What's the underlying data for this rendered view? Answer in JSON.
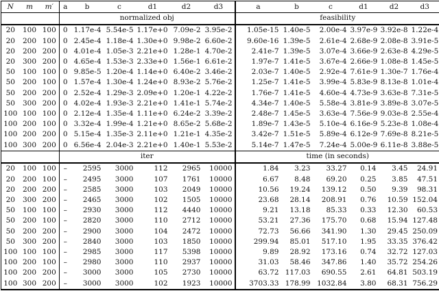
{
  "table": {
    "id_headers": [
      "N",
      "m",
      "m′"
    ],
    "metric_headers": [
      "a",
      "b",
      "c",
      "d1",
      "d2",
      "d3"
    ],
    "sections": [
      {
        "left_label": "normalized obj",
        "right_label": "feasibility"
      },
      {
        "left_label": "iter",
        "right_label": "time (in seconds)"
      }
    ],
    "rows": [
      {
        "id": [
          "20",
          "100",
          "100"
        ],
        "normalized_obj": [
          "0",
          "1.17e-4",
          "5.54e-5",
          "1.17e+0",
          "7.09e-2",
          "3.95e-2"
        ],
        "feasibility": [
          "1.05e-15",
          "1.40e-5",
          "2.00e-4",
          "3.97e-9",
          "3.92e-8",
          "1.22e-4"
        ],
        "iter": [
          "–",
          "2595",
          "3000",
          "112",
          "2965",
          "10000"
        ],
        "time": [
          "1.84",
          "3.23",
          "33.27",
          "0.14",
          "3.45",
          "24.91"
        ]
      },
      {
        "id": [
          "20",
          "200",
          "100"
        ],
        "normalized_obj": [
          "0",
          "2.45e-4",
          "1.18e-4",
          "1.30e+0",
          "9.98e-2",
          "6.60e-2"
        ],
        "feasibility": [
          "9.60e-16",
          "1.39e-5",
          "2.61e-4",
          "2.68e-9",
          "2.08e-8",
          "3.91e-5"
        ],
        "iter": [
          "–",
          "2495",
          "3000",
          "107",
          "1761",
          "10000"
        ],
        "time": [
          "6.67",
          "8.48",
          "69.20",
          "0.25",
          "3.85",
          "47.51"
        ]
      },
      {
        "id": [
          "20",
          "200",
          "200"
        ],
        "normalized_obj": [
          "0",
          "4.01e-4",
          "1.05e-3",
          "2.21e+0",
          "1.28e-1",
          "4.70e-2"
        ],
        "feasibility": [
          "2.41e-7",
          "1.39e-5",
          "3.07e-4",
          "3.66e-9",
          "2.63e-8",
          "4.29e-5"
        ],
        "iter": [
          "–",
          "2585",
          "3000",
          "103",
          "2049",
          "10000"
        ],
        "time": [
          "10.56",
          "19.24",
          "139.12",
          "0.50",
          "9.39",
          "98.31"
        ]
      },
      {
        "id": [
          "20",
          "300",
          "200"
        ],
        "normalized_obj": [
          "0",
          "4.65e-4",
          "1.53e-3",
          "2.33e+0",
          "1.56e-1",
          "6.61e-2"
        ],
        "feasibility": [
          "1.97e-7",
          "1.41e-5",
          "3.67e-4",
          "2.66e-9",
          "1.08e-8",
          "1.45e-5"
        ],
        "iter": [
          "–",
          "2465",
          "3000",
          "102",
          "1505",
          "10000"
        ],
        "time": [
          "23.68",
          "28.14",
          "208.91",
          "0.76",
          "10.59",
          "152.04"
        ]
      },
      {
        "id": [
          "50",
          "100",
          "100"
        ],
        "normalized_obj": [
          "0",
          "9.85e-5",
          "1.20e-4",
          "1.14e+0",
          "6.40e-2",
          "3.46e-2"
        ],
        "feasibility": [
          "2.03e-7",
          "1.40e-5",
          "2.92e-4",
          "7.61e-9",
          "1.30e-7",
          "1.76e-4"
        ],
        "iter": [
          "–",
          "2930",
          "3000",
          "112",
          "4440",
          "10000"
        ],
        "time": [
          "9.21",
          "13.18",
          "85.33",
          "0.33",
          "12.30",
          "60.53"
        ]
      },
      {
        "id": [
          "50",
          "200",
          "100"
        ],
        "normalized_obj": [
          "0",
          "1.57e-4",
          "1.30e-4",
          "1.24e+0",
          "8.93e-2",
          "5.76e-2"
        ],
        "feasibility": [
          "1.25e-7",
          "1.41e-5",
          "3.99e-4",
          "5.83e-9",
          "8.13e-8",
          "1.01e-4"
        ],
        "iter": [
          "–",
          "2820",
          "3000",
          "110",
          "2712",
          "10000"
        ],
        "time": [
          "53.21",
          "27.36",
          "175.70",
          "0.68",
          "15.94",
          "127.48"
        ]
      },
      {
        "id": [
          "50",
          "200",
          "200"
        ],
        "normalized_obj": [
          "0",
          "2.52e-4",
          "1.29e-3",
          "2.09e+0",
          "1.20e-1",
          "4.22e-2"
        ],
        "feasibility": [
          "1.76e-7",
          "1.41e-5",
          "4.60e-4",
          "4.73e-9",
          "3.63e-8",
          "7.31e-5"
        ],
        "iter": [
          "–",
          "2900",
          "3000",
          "104",
          "2472",
          "10000"
        ],
        "time": [
          "72.73",
          "56.66",
          "341.90",
          "1.30",
          "29.45",
          "250.09"
        ]
      },
      {
        "id": [
          "50",
          "300",
          "200"
        ],
        "normalized_obj": [
          "0",
          "4.02e-4",
          "1.93e-3",
          "2.21e+0",
          "1.41e-1",
          "5.74e-2"
        ],
        "feasibility": [
          "4.34e-7",
          "1.40e-5",
          "5.58e-4",
          "3.81e-9",
          "3.89e-8",
          "3.07e-5"
        ],
        "iter": [
          "–",
          "2840",
          "3000",
          "103",
          "1850",
          "10000"
        ],
        "time": [
          "299.94",
          "85.01",
          "517.10",
          "1.95",
          "33.35",
          "376.42"
        ]
      },
      {
        "id": [
          "100",
          "100",
          "100"
        ],
        "normalized_obj": [
          "0",
          "2.12e-4",
          "1.35e-4",
          "1.11e+0",
          "6.24e-2",
          "3.39e-2"
        ],
        "feasibility": [
          "2.48e-7",
          "1.45e-5",
          "3.63e-4",
          "7.56e-9",
          "9.03e-8",
          "2.55e-4"
        ],
        "iter": [
          "–",
          "2985",
          "3000",
          "117",
          "5398",
          "10000"
        ],
        "time": [
          "9.89",
          "28.92",
          "173.16",
          "0.74",
          "32.72",
          "127.03"
        ]
      },
      {
        "id": [
          "100",
          "200",
          "100"
        ],
        "normalized_obj": [
          "0",
          "3.32e-4",
          "1.99e-4",
          "1.21e+0",
          "8.65e-2",
          "5.68e-2"
        ],
        "feasibility": [
          "1.89e-7",
          "1.43e-5",
          "5.10e-4",
          "6.16e-9",
          "5.23e-8",
          "1.08e-4"
        ],
        "iter": [
          "–",
          "2980",
          "3000",
          "110",
          "2937",
          "10000"
        ],
        "time": [
          "31.03",
          "58.46",
          "347.86",
          "1.40",
          "35.72",
          "254.26"
        ]
      },
      {
        "id": [
          "100",
          "200",
          "200"
        ],
        "normalized_obj": [
          "0",
          "5.15e-4",
          "1.35e-3",
          "2.11e+0",
          "1.21e-1",
          "4.35e-2"
        ],
        "feasibility": [
          "3.42e-7",
          "1.51e-5",
          "5.89e-4",
          "6.12e-9",
          "7.69e-8",
          "8.21e-5"
        ],
        "iter": [
          "–",
          "3000",
          "3000",
          "105",
          "2730",
          "10000"
        ],
        "time": [
          "63.72",
          "117.03",
          "690.55",
          "2.61",
          "64.81",
          "503.19"
        ]
      },
      {
        "id": [
          "100",
          "300",
          "200"
        ],
        "normalized_obj": [
          "0",
          "6.56e-4",
          "2.04e-3",
          "2.21e+0",
          "1.40e-1",
          "5.53e-2"
        ],
        "feasibility": [
          "5.14e-7",
          "1.47e-5",
          "7.24e-4",
          "5.00e-9",
          "6.11e-8",
          "3.88e-5"
        ],
        "iter": [
          "–",
          "3000",
          "3000",
          "102",
          "1923",
          "10000"
        ],
        "time": [
          "3703.33",
          "178.99",
          "1032.84",
          "3.80",
          "68.31",
          "756.29"
        ]
      }
    ]
  }
}
